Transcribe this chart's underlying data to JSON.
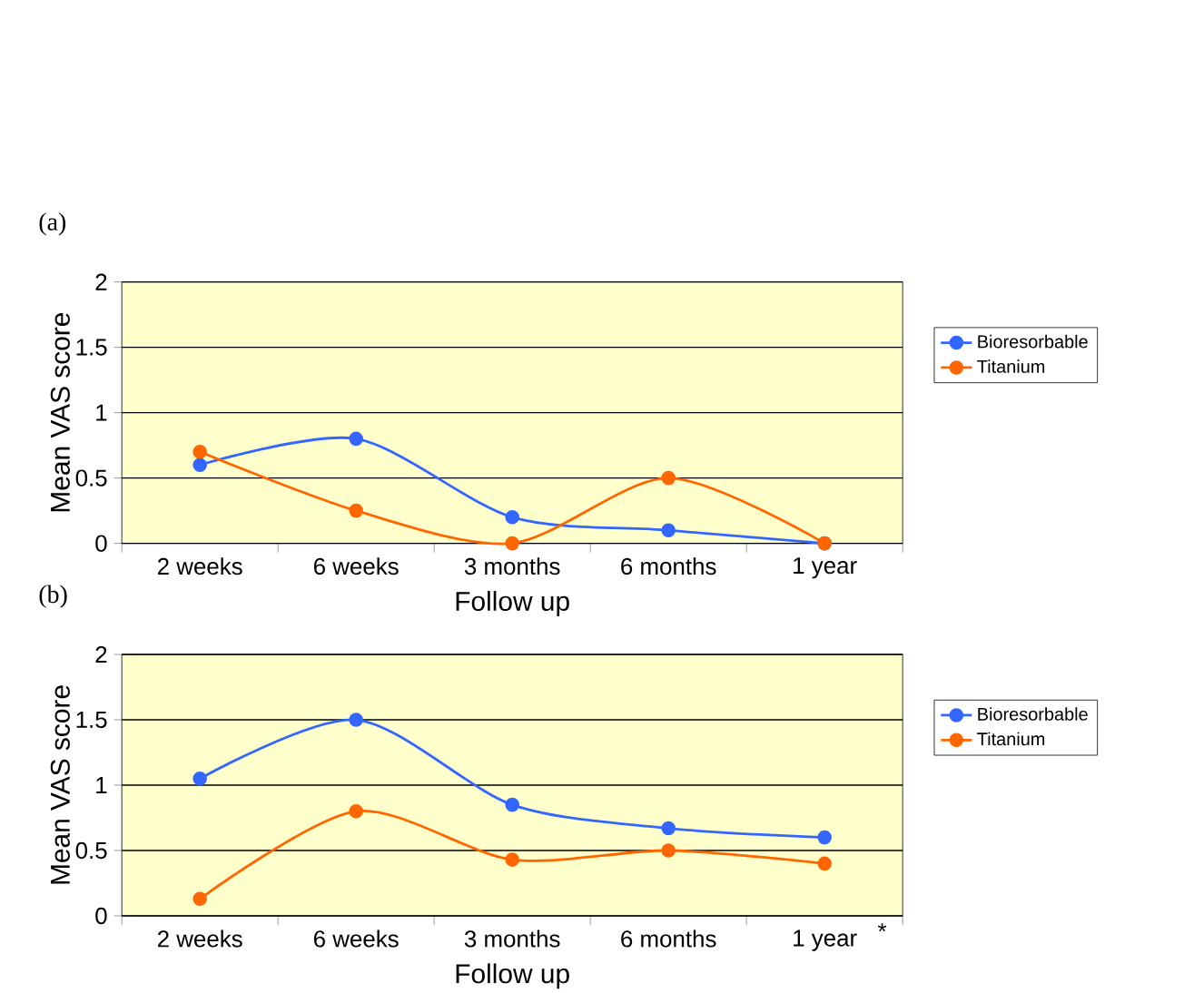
{
  "chart_data": [
    {
      "type": "line",
      "title": "(a)",
      "xlabel": "Follow up",
      "ylabel": "Mean VAS score",
      "categories": [
        "2 weeks",
        "6 weeks",
        "3 months",
        "6 months",
        "1 year"
      ],
      "series": [
        {
          "name": "Bioresorbable",
          "color": "#3366ff",
          "values": [
            0.6,
            0.8,
            0.2,
            0.1,
            0
          ]
        },
        {
          "name": "Titanium",
          "color": "#ff6600",
          "values": [
            0.7,
            0.25,
            0,
            0.5,
            0
          ]
        }
      ],
      "ylim": [
        0,
        2
      ],
      "yticks": [
        0,
        0.5,
        1,
        1.5,
        2
      ],
      "grid": "y",
      "legend": "right",
      "marker": "circle",
      "line_style": "solid"
    },
    {
      "type": "line",
      "title": "(b)",
      "xlabel": "Follow up",
      "ylabel": "Mean VAS score",
      "categories": [
        "2 weeks",
        "6 weeks",
        "3 months",
        "6 months",
        "1 year"
      ],
      "series": [
        {
          "name": "Bioresorbable",
          "color": "#3366ff",
          "values": [
            1.05,
            1.5,
            0.85,
            0.67,
            0.6
          ]
        },
        {
          "name": "Titanium",
          "color": "#ff6600",
          "values": [
            0.13,
            0.8,
            0.43,
            0.5,
            0.4
          ]
        }
      ],
      "ylim": [
        0,
        2
      ],
      "yticks": [
        0,
        0.5,
        1,
        1.5,
        2
      ],
      "grid": "y",
      "legend": "right",
      "marker": "circle",
      "line_style": "solid",
      "annotations": [
        "*"
      ]
    }
  ]
}
